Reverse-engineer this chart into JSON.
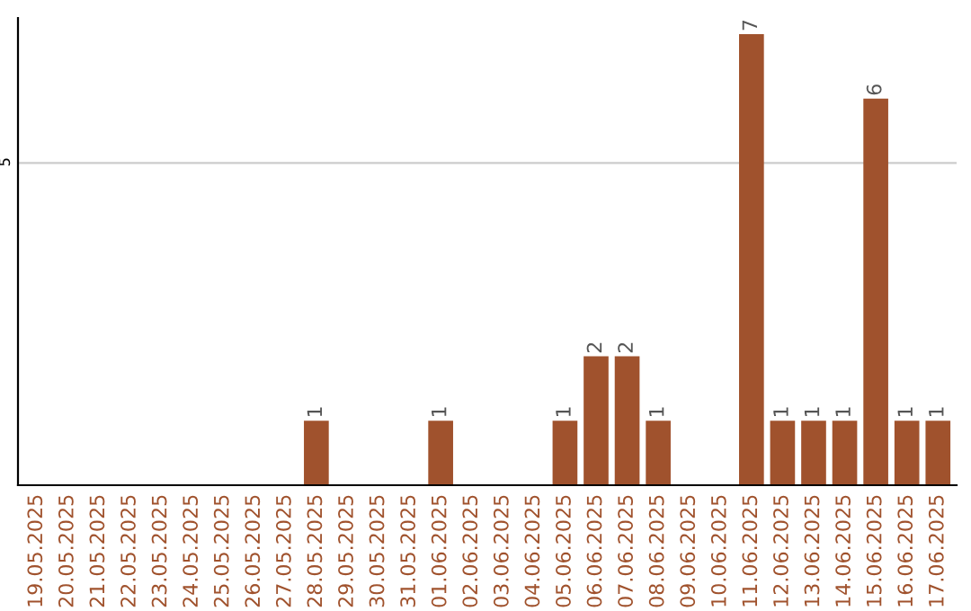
{
  "chart_data": {
    "type": "bar",
    "categories": [
      "19.05.2025",
      "20.05.2025",
      "21.05.2025",
      "22.05.2025",
      "23.05.2025",
      "24.05.2025",
      "25.05.2025",
      "26.05.2025",
      "27.05.2025",
      "28.05.2025",
      "29.05.2025",
      "30.05.2025",
      "31.05.2025",
      "01.06.2025",
      "02.06.2025",
      "03.06.2025",
      "04.06.2025",
      "05.06.2025",
      "06.06.2025",
      "07.06.2025",
      "08.06.2025",
      "09.06.2025",
      "10.06.2025",
      "11.06.2025",
      "12.06.2025",
      "13.06.2025",
      "14.06.2025",
      "15.06.2025",
      "16.06.2025",
      "17.06.2025"
    ],
    "values": [
      0,
      0,
      0,
      0,
      0,
      0,
      0,
      0,
      0,
      1,
      0,
      0,
      0,
      1,
      0,
      0,
      0,
      1,
      2,
      2,
      1,
      0,
      0,
      7,
      1,
      1,
      1,
      6,
      1,
      1
    ],
    "value_labels": [
      null,
      null,
      null,
      null,
      null,
      null,
      null,
      null,
      null,
      "1",
      null,
      null,
      null,
      "1",
      null,
      null,
      null,
      "1",
      "2",
      "2",
      "1",
      null,
      null,
      "7",
      "1",
      "1",
      "1",
      "6",
      "1",
      "1"
    ],
    "color": "#a0522d",
    "ylim": [
      0,
      7.25
    ],
    "yticks": [
      5
    ],
    "grid": "y"
  }
}
